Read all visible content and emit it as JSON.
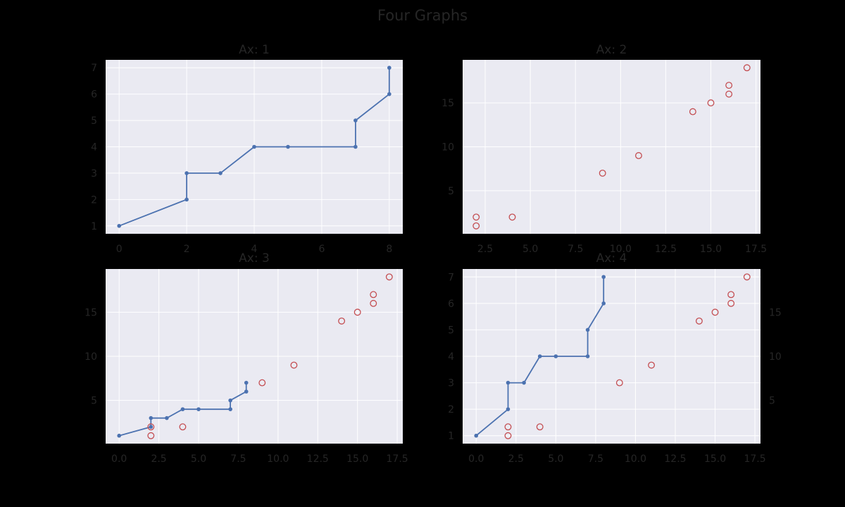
{
  "title": "Four Graphs",
  "colors": {
    "figure_background": "#000000",
    "axes_background": "#eaeaf2",
    "grid": "#ffffff",
    "line": "#4c72b0",
    "scatter_edge": "#c44e52",
    "text": "#262626"
  },
  "chart_data": [
    {
      "type": "line",
      "title": "Ax: 1",
      "grid": true,
      "xlim": [
        -0.4,
        8.4
      ],
      "ylim": [
        0.7,
        7.3
      ],
      "xticks": [
        "0",
        "2",
        "4",
        "6",
        "8"
      ],
      "yticks": [
        "1",
        "2",
        "3",
        "4",
        "5",
        "6",
        "7"
      ],
      "series": [
        {
          "type": "step-line",
          "marker": "dot",
          "x": [
            0,
            2,
            2,
            3,
            4,
            5,
            7,
            7,
            8,
            8
          ],
          "y": [
            1,
            2,
            3,
            3,
            4,
            4,
            4,
            5,
            6,
            7
          ]
        }
      ]
    },
    {
      "type": "scatter",
      "title": "Ax: 2",
      "grid": true,
      "xlim": [
        1.25,
        17.75
      ],
      "ylim": [
        0.1,
        19.9
      ],
      "xticks": [
        "2.5",
        "5.0",
        "7.5",
        "10.0",
        "12.5",
        "15.0",
        "17.5"
      ],
      "yticks": [
        "5",
        "10",
        "15"
      ],
      "series": [
        {
          "type": "scatter",
          "marker": "open-circle",
          "x": [
            2,
            2,
            4,
            9,
            11,
            14,
            15,
            16,
            16,
            17
          ],
          "y": [
            1,
            2,
            2,
            7,
            9,
            14,
            15,
            16,
            17,
            19
          ]
        }
      ]
    },
    {
      "type": "line",
      "title": "Ax: 3",
      "grid": true,
      "xlim": [
        -0.85,
        17.85
      ],
      "ylim": [
        0.1,
        19.9
      ],
      "xticks": [
        "0.0",
        "2.5",
        "5.0",
        "7.5",
        "10.0",
        "12.5",
        "15.0",
        "17.5"
      ],
      "yticks": [
        "5",
        "10",
        "15"
      ],
      "series": [
        {
          "type": "step-line",
          "marker": "dot",
          "x": [
            0,
            2,
            2,
            3,
            4,
            5,
            7,
            7,
            8,
            8
          ],
          "y": [
            1,
            2,
            3,
            3,
            4,
            4,
            4,
            5,
            6,
            7
          ]
        },
        {
          "type": "scatter",
          "marker": "open-circle",
          "x": [
            2,
            2,
            4,
            9,
            11,
            14,
            15,
            16,
            16,
            17
          ],
          "y": [
            1,
            2,
            2,
            7,
            9,
            14,
            15,
            16,
            17,
            19
          ]
        }
      ]
    },
    {
      "type": "line",
      "title": "Ax: 4",
      "grid": true,
      "xlim": [
        -0.85,
        17.85
      ],
      "ylim": [
        0.7,
        7.3
      ],
      "y2lim": [
        0.1,
        19.9
      ],
      "xticks": [
        "0.0",
        "2.5",
        "5.0",
        "7.5",
        "10.0",
        "12.5",
        "15.0",
        "17.5"
      ],
      "yticks": [
        "1",
        "2",
        "3",
        "4",
        "5",
        "6",
        "7"
      ],
      "y2ticks": [
        "5",
        "10",
        "15"
      ],
      "series": [
        {
          "type": "step-line",
          "marker": "dot",
          "axis": "left",
          "x": [
            0,
            2,
            2,
            3,
            4,
            5,
            7,
            7,
            8,
            8
          ],
          "y": [
            1,
            2,
            3,
            3,
            4,
            4,
            4,
            5,
            6,
            7
          ]
        },
        {
          "type": "scatter",
          "marker": "open-circle",
          "axis": "right",
          "x": [
            2,
            2,
            4,
            9,
            11,
            14,
            15,
            16,
            16,
            17
          ],
          "y": [
            1,
            2,
            2,
            7,
            9,
            14,
            15,
            16,
            17,
            19
          ]
        }
      ]
    }
  ]
}
